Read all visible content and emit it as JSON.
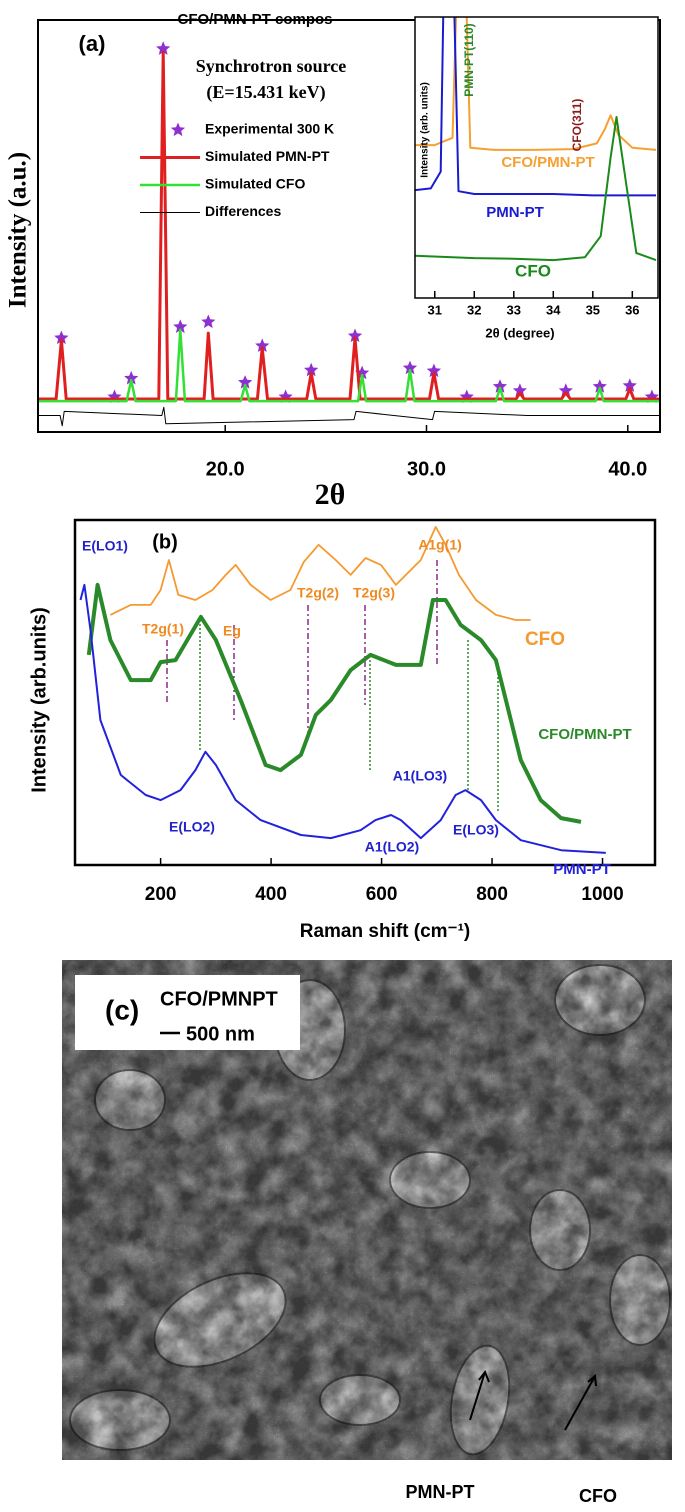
{
  "chart_data": [
    {
      "type": "line",
      "panel_label": "(a)",
      "title": "CFO/PMN-PT compos",
      "annotations": [
        "Synchrotron source",
        "(E=15.431 keV)"
      ],
      "x_label": "2θ",
      "y_label": "Intensity (a.u.)",
      "xlim": [
        10.7,
        41.6
      ],
      "ylim": [
        0,
        100
      ],
      "xticks": [
        {
          "value": 20,
          "label": "20.0"
        },
        {
          "value": 30,
          "label": "30.0"
        },
        {
          "value": 40,
          "label": "40.0"
        }
      ],
      "legend": "upper left",
      "series": [
        {
          "name": "Experimental 300 K",
          "color": "#8e2fd0",
          "marker": "star",
          "x": [
            11.86,
            14.5,
            15.33,
            16.92,
            17.77,
            19.16,
            20.99,
            21.84,
            23.0,
            24.27,
            26.45,
            26.8,
            29.18,
            30.37,
            32.0,
            33.65,
            34.64,
            36.92,
            38.61,
            40.1,
            41.2
          ],
          "values": [
            22.8,
            8.5,
            13,
            93,
            25.5,
            26.7,
            12,
            20.9,
            8.5,
            15,
            23.3,
            14.3,
            15.5,
            14.8,
            8.5,
            11,
            10,
            10,
            11,
            11.2,
            8.5
          ]
        },
        {
          "name": "Simulated PMN-PT",
          "color": "#e02020",
          "x": [
            10.7,
            11.6,
            11.86,
            12.1,
            16.7,
            16.92,
            17.15,
            18.95,
            19.16,
            19.4,
            21.6,
            21.84,
            22.1,
            24.05,
            24.27,
            24.5,
            26.2,
            26.45,
            26.7,
            30.15,
            30.37,
            30.6,
            34.45,
            34.64,
            34.85,
            36.7,
            36.92,
            37.15,
            39.9,
            40.1,
            40.3,
            41.6
          ],
          "values": [
            8,
            8,
            22.3,
            8,
            8,
            92.2,
            8,
            8,
            24,
            8,
            8,
            20.4,
            8,
            8,
            14.3,
            8,
            8,
            22.8,
            8,
            8,
            14.3,
            8,
            8,
            9.5,
            8,
            8,
            9.5,
            8,
            8,
            10.5,
            8,
            8
          ]
        },
        {
          "name": "Simulated CFO",
          "color": "#33e033",
          "x": [
            10.7,
            15.1,
            15.33,
            15.55,
            17.55,
            17.77,
            18.0,
            20.77,
            20.99,
            21.2,
            26.6,
            26.8,
            27.0,
            28.96,
            29.18,
            29.4,
            33.45,
            33.65,
            33.85,
            38.4,
            38.61,
            38.8,
            41.6
          ],
          "values": [
            7.5,
            7.5,
            12.6,
            7.5,
            7.5,
            24.8,
            7.5,
            7.5,
            11.4,
            7.5,
            7.5,
            13.8,
            7.5,
            7.5,
            15,
            7.5,
            7.5,
            10.7,
            7.5,
            7.5,
            10.7,
            7.5,
            7.5
          ]
        },
        {
          "name": "Differences",
          "color": "#000000",
          "x": [
            10.7,
            11.8,
            11.9,
            12.0,
            16.85,
            16.95,
            17.05,
            26.4,
            26.5,
            30.3,
            30.4,
            35.0,
            41.6
          ],
          "values": [
            4,
            4,
            1.5,
            5,
            4,
            6,
            2,
            3,
            5,
            3,
            5,
            4,
            4
          ]
        }
      ]
    },
    {
      "type": "line",
      "x_label": "2θ (degree)",
      "y_label": "Intensity (arb. units)",
      "xlim": [
        30.5,
        36.65
      ],
      "ylim": [
        0,
        100
      ],
      "xticks": [
        31,
        32,
        33,
        34,
        35,
        36
      ],
      "annotations": [
        {
          "text": "PMN-PT(110)",
          "color": "#2a8a2a"
        },
        {
          "text": "CFO(311)",
          "color": "#8b1a1a"
        }
      ],
      "series": [
        {
          "name": "CFO/PMN-PT",
          "color": "#f5a030",
          "x": [
            30.5,
            31.0,
            31.45,
            31.6,
            31.75,
            31.9,
            32.5,
            33.5,
            34.5,
            35.1,
            35.3,
            35.45,
            35.65,
            36.0,
            36.6
          ],
          "values": [
            54.4,
            54.4,
            57,
            130,
            130,
            53.5,
            52.7,
            52.7,
            53,
            55,
            60,
            65,
            58,
            53.5,
            52.7
          ]
        },
        {
          "name": "PMN-PT",
          "color": "#1a1ad0",
          "x": [
            30.5,
            30.9,
            31.15,
            31.25,
            31.45,
            31.6,
            32.0,
            33,
            34,
            35,
            36,
            36.6
          ],
          "values": [
            38.4,
            39,
            45,
            130,
            130,
            38,
            37,
            37,
            37,
            36.5,
            36.5,
            36.5
          ]
        },
        {
          "name": "CFO",
          "color": "#1a8a1a",
          "x": [
            30.5,
            32,
            33,
            34,
            34.8,
            35.2,
            35.45,
            35.6,
            35.8,
            36.1,
            36.6
          ],
          "values": [
            15,
            14.2,
            14,
            13.5,
            14.5,
            22,
            50,
            64.4,
            45,
            16,
            13.5
          ]
        }
      ]
    },
    {
      "type": "line",
      "panel_label": "(b)",
      "x_label": "Raman shift (cm⁻¹)",
      "y_label": "Intensity (arb.units)",
      "xlim": [
        45,
        1095
      ],
      "ylim": [
        0,
        100
      ],
      "xticks": [
        200,
        400,
        600,
        800,
        1000
      ],
      "annotations": [
        {
          "text": "E(LO1)",
          "color": "#2222cc"
        },
        {
          "text": "T2g(1)",
          "color": "#f08a20"
        },
        {
          "text": "Eg",
          "color": "#f08a20"
        },
        {
          "text": "T2g(2)",
          "color": "#f08a20"
        },
        {
          "text": "T2g(3)",
          "color": "#f08a20"
        },
        {
          "text": "A1g(1)",
          "color": "#f08a20"
        },
        {
          "text": "E(LO2)",
          "color": "#2222cc"
        },
        {
          "text": "A1(LO2)",
          "color": "#2222cc"
        },
        {
          "text": "A1(LO3)",
          "color": "#2222cc"
        },
        {
          "text": "E(LO3)",
          "color": "#2222cc"
        }
      ],
      "series": [
        {
          "name": "CFO",
          "color": "#f59a30",
          "x": [
            109,
            146,
            182,
            200,
            215,
            232,
            263,
            294,
            318,
            336,
            363,
            399,
            435,
            459,
            486,
            517,
            544,
            571,
            599,
            626,
            671,
            698,
            716,
            740,
            771,
            807,
            843,
            870
          ],
          "values": [
            72.5,
            75.4,
            75.4,
            79.7,
            88.4,
            78.3,
            76.8,
            79.7,
            84.1,
            87,
            81.2,
            76.8,
            79.7,
            87.8,
            92.8,
            88.4,
            84.1,
            89,
            87,
            81.2,
            88.4,
            98,
            92.8,
            84.1,
            76.8,
            72.5,
            71,
            71
          ]
        },
        {
          "name": "CFO/PMN-PT",
          "color": "#2a8a2a",
          "x": [
            70,
            86,
            109,
            146,
            182,
            200,
            227,
            273,
            300,
            345,
            390,
            417,
            454,
            481,
            508,
            544,
            580,
            626,
            671,
            693,
            716,
            743,
            780,
            807,
            825,
            852,
            888,
            925,
            961
          ],
          "values": [
            60.9,
            81.2,
            65.2,
            53.6,
            53.6,
            58.8,
            59.4,
            71.9,
            65.2,
            47.8,
            29,
            27.5,
            31.9,
            43.5,
            47.8,
            56.5,
            60.9,
            58,
            58,
            76.8,
            76.8,
            69.6,
            65.2,
            59.4,
            47.8,
            30.4,
            18.8,
            13.6,
            12.5
          ]
        },
        {
          "name": "PMN-PT",
          "color": "#2222dd",
          "x": [
            55,
            62,
            73,
            91,
            128,
            173,
            200,
            236,
            263,
            281,
            300,
            336,
            381,
            454,
            508,
            562,
            589,
            617,
            635,
            671,
            707,
            734,
            752,
            780,
            807,
            852,
            925,
            1006
          ],
          "values": [
            76.8,
            81.2,
            68.1,
            42,
            26.1,
            20.3,
            18.8,
            21.7,
            27.5,
            32.8,
            29,
            18.8,
            13,
            8.7,
            7.8,
            10.1,
            13,
            14.5,
            13,
            7.8,
            13,
            20.3,
            21.7,
            18.8,
            13,
            7.2,
            4.3,
            3.5
          ]
        }
      ]
    }
  ],
  "image_panel": {
    "label": "(c)",
    "title": "CFO/PMNPT",
    "scale_bar": "500 nm",
    "annotations": [
      "PMN-PT",
      "CFO"
    ]
  }
}
